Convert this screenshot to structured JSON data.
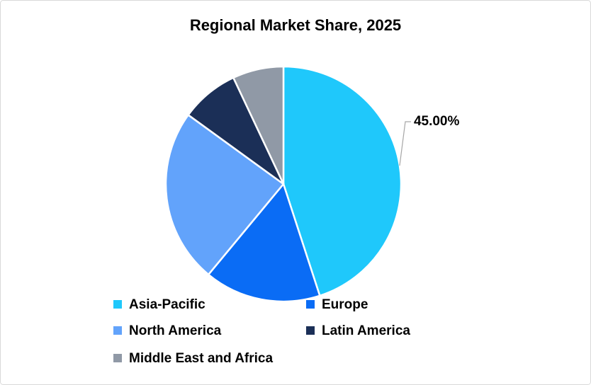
{
  "chart_data": {
    "type": "pie",
    "title": "Regional Market Share, 2025",
    "categories": [
      "Asia-Pacific",
      "Europe",
      "North America",
      "Latin America",
      "Middle East and Africa"
    ],
    "values": [
      45,
      16,
      24,
      8,
      7
    ],
    "value_labels": [
      "45.00%",
      null,
      null,
      null,
      null
    ],
    "colors": [
      "#1fc8fb",
      "#0a6cf5",
      "#62a3fb",
      "#1b2f57",
      "#9099a6"
    ],
    "legend": "bottom"
  }
}
